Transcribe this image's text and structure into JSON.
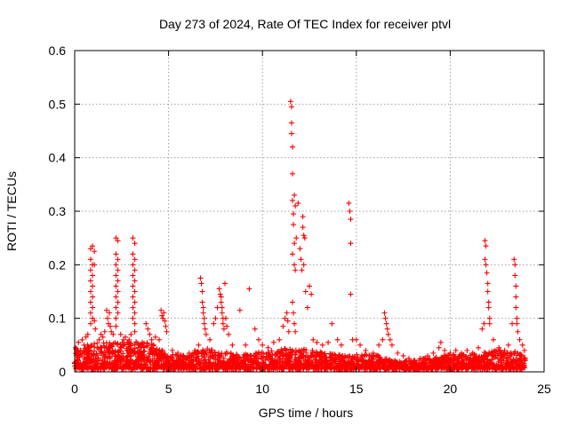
{
  "chart_data": {
    "type": "scatter",
    "title": "Day 273 of 2024, Rate Of TEC Index for receiver ptvl",
    "xlabel": "GPS time / hours",
    "ylabel": "ROTI / TECUs",
    "xlim": [
      0,
      25
    ],
    "ylim": [
      0,
      0.6
    ],
    "xticks": [
      0,
      5,
      10,
      15,
      20,
      25
    ],
    "yticks": [
      0,
      0.1,
      0.2,
      0.3,
      0.4,
      0.5,
      0.6
    ],
    "xtick_labels": [
      "0",
      "5",
      "10",
      "15",
      "20",
      "25"
    ],
    "ytick_labels": [
      "0",
      "0.1",
      "0.2",
      "0.3",
      "0.4",
      "0.5",
      "0.6"
    ],
    "grid": true,
    "marker": "+",
    "color": "#ff0000",
    "series": [
      {
        "name": "ROTI",
        "points": [
          [
            0.05,
            0.045
          ],
          [
            0.1,
            0.03
          ],
          [
            0.2,
            0.055
          ],
          [
            0.3,
            0.04
          ],
          [
            0.4,
            0.06
          ],
          [
            0.5,
            0.05
          ],
          [
            0.6,
            0.065
          ],
          [
            0.7,
            0.07
          ],
          [
            0.85,
            0.23
          ],
          [
            0.85,
            0.21
          ],
          [
            0.85,
            0.19
          ],
          [
            0.85,
            0.17
          ],
          [
            0.85,
            0.15
          ],
          [
            0.85,
            0.13
          ],
          [
            0.85,
            0.11
          ],
          [
            0.85,
            0.09
          ],
          [
            0.95,
            0.235
          ],
          [
            0.95,
            0.2
          ],
          [
            0.95,
            0.18
          ],
          [
            0.95,
            0.16
          ],
          [
            0.95,
            0.14
          ],
          [
            0.95,
            0.12
          ],
          [
            0.95,
            0.1
          ],
          [
            1.05,
            0.225
          ],
          [
            1.05,
            0.2
          ],
          [
            1.05,
            0.095
          ],
          [
            1.1,
            0.08
          ],
          [
            1.3,
            0.06
          ],
          [
            1.4,
            0.07
          ],
          [
            1.5,
            0.065
          ],
          [
            1.6,
            0.075
          ],
          [
            1.7,
            0.115
          ],
          [
            1.75,
            0.1
          ],
          [
            1.8,
            0.09
          ],
          [
            1.85,
            0.11
          ],
          [
            1.9,
            0.085
          ],
          [
            1.95,
            0.075
          ],
          [
            2.05,
            0.07
          ],
          [
            2.2,
            0.25
          ],
          [
            2.2,
            0.22
          ],
          [
            2.2,
            0.2
          ],
          [
            2.2,
            0.18
          ],
          [
            2.2,
            0.16
          ],
          [
            2.2,
            0.14
          ],
          [
            2.2,
            0.12
          ],
          [
            2.2,
            0.1
          ],
          [
            2.2,
            0.085
          ],
          [
            2.3,
            0.245
          ],
          [
            2.3,
            0.21
          ],
          [
            2.3,
            0.19
          ],
          [
            2.3,
            0.17
          ],
          [
            2.3,
            0.15
          ],
          [
            2.3,
            0.13
          ],
          [
            2.3,
            0.11
          ],
          [
            2.45,
            0.07
          ],
          [
            2.6,
            0.06
          ],
          [
            2.7,
            0.065
          ],
          [
            2.8,
            0.055
          ],
          [
            2.9,
            0.06
          ],
          [
            3.0,
            0.07
          ],
          [
            3.1,
            0.25
          ],
          [
            3.1,
            0.22
          ],
          [
            3.1,
            0.2
          ],
          [
            3.1,
            0.18
          ],
          [
            3.1,
            0.16
          ],
          [
            3.1,
            0.14
          ],
          [
            3.1,
            0.12
          ],
          [
            3.1,
            0.1
          ],
          [
            3.2,
            0.24
          ],
          [
            3.2,
            0.21
          ],
          [
            3.2,
            0.19
          ],
          [
            3.2,
            0.17
          ],
          [
            3.2,
            0.15
          ],
          [
            3.2,
            0.13
          ],
          [
            3.2,
            0.11
          ],
          [
            3.2,
            0.09
          ],
          [
            3.2,
            0.075
          ],
          [
            3.4,
            0.05
          ],
          [
            3.6,
            0.055
          ],
          [
            3.8,
            0.09
          ],
          [
            3.9,
            0.08
          ],
          [
            4.0,
            0.07
          ],
          [
            4.1,
            0.06
          ],
          [
            4.3,
            0.065
          ],
          [
            4.5,
            0.06
          ],
          [
            4.6,
            0.115
          ],
          [
            4.65,
            0.105
          ],
          [
            4.7,
            0.1
          ],
          [
            4.75,
            0.11
          ],
          [
            4.8,
            0.095
          ],
          [
            4.85,
            0.085
          ],
          [
            4.9,
            0.075
          ],
          [
            5.2,
            0.04
          ],
          [
            5.5,
            0.035
          ],
          [
            5.8,
            0.03
          ],
          [
            6.1,
            0.035
          ],
          [
            6.4,
            0.04
          ],
          [
            6.6,
            0.05
          ],
          [
            6.7,
            0.175
          ],
          [
            6.75,
            0.165
          ],
          [
            6.8,
            0.15
          ],
          [
            6.8,
            0.13
          ],
          [
            6.85,
            0.12
          ],
          [
            6.85,
            0.11
          ],
          [
            6.9,
            0.1
          ],
          [
            6.9,
            0.09
          ],
          [
            6.95,
            0.08
          ],
          [
            7.0,
            0.07
          ],
          [
            7.2,
            0.06
          ],
          [
            7.4,
            0.09
          ],
          [
            7.5,
            0.1
          ],
          [
            7.6,
            0.12
          ],
          [
            7.7,
            0.155
          ],
          [
            7.75,
            0.145
          ],
          [
            7.8,
            0.14
          ],
          [
            7.8,
            0.13
          ],
          [
            7.85,
            0.12
          ],
          [
            7.85,
            0.11
          ],
          [
            7.9,
            0.1
          ],
          [
            7.9,
            0.09
          ],
          [
            7.95,
            0.08
          ],
          [
            8.0,
            0.165
          ],
          [
            8.05,
            0.1
          ],
          [
            8.1,
            0.085
          ],
          [
            8.2,
            0.07
          ],
          [
            8.4,
            0.05
          ],
          [
            8.8,
            0.115
          ],
          [
            9.1,
            0.05
          ],
          [
            9.3,
            0.155
          ],
          [
            9.6,
            0.08
          ],
          [
            9.8,
            0.06
          ],
          [
            10.0,
            0.05
          ],
          [
            10.3,
            0.045
          ],
          [
            10.6,
            0.055
          ],
          [
            10.9,
            0.06
          ],
          [
            11.1,
            0.085
          ],
          [
            11.2,
            0.1
          ],
          [
            11.3,
            0.11
          ],
          [
            11.35,
            0.095
          ],
          [
            11.4,
            0.075
          ],
          [
            11.5,
            0.505
          ],
          [
            11.55,
            0.495
          ],
          [
            11.55,
            0.465
          ],
          [
            11.55,
            0.445
          ],
          [
            11.6,
            0.42
          ],
          [
            11.6,
            0.37
          ],
          [
            11.6,
            0.32
          ],
          [
            11.65,
            0.295
          ],
          [
            11.65,
            0.275
          ],
          [
            11.7,
            0.33
          ],
          [
            11.75,
            0.31
          ],
          [
            11.7,
            0.24
          ],
          [
            11.7,
            0.2
          ],
          [
            11.75,
            0.19
          ],
          [
            11.8,
            0.25
          ],
          [
            11.6,
            0.22
          ],
          [
            11.6,
            0.13
          ],
          [
            11.65,
            0.11
          ],
          [
            11.7,
            0.09
          ],
          [
            11.75,
            0.075
          ],
          [
            11.9,
            0.315
          ],
          [
            12.0,
            0.23
          ],
          [
            12.05,
            0.21
          ],
          [
            12.1,
            0.19
          ],
          [
            12.15,
            0.29
          ],
          [
            12.15,
            0.27
          ],
          [
            12.2,
            0.255
          ],
          [
            12.25,
            0.25
          ],
          [
            12.2,
            0.2
          ],
          [
            12.3,
            0.15
          ],
          [
            12.4,
            0.12
          ],
          [
            12.5,
            0.16
          ],
          [
            12.6,
            0.145
          ],
          [
            12.7,
            0.06
          ],
          [
            12.9,
            0.055
          ],
          [
            13.2,
            0.05
          ],
          [
            13.5,
            0.055
          ],
          [
            13.7,
            0.09
          ],
          [
            14.0,
            0.06
          ],
          [
            14.2,
            0.05
          ],
          [
            14.6,
            0.315
          ],
          [
            14.65,
            0.3
          ],
          [
            14.7,
            0.285
          ],
          [
            14.7,
            0.24
          ],
          [
            14.7,
            0.145
          ],
          [
            14.8,
            0.06
          ],
          [
            15.0,
            0.06
          ],
          [
            15.2,
            0.05
          ],
          [
            15.5,
            0.04
          ],
          [
            15.9,
            0.035
          ],
          [
            16.2,
            0.05
          ],
          [
            16.4,
            0.06
          ],
          [
            16.5,
            0.11
          ],
          [
            16.55,
            0.1
          ],
          [
            16.6,
            0.09
          ],
          [
            16.65,
            0.08
          ],
          [
            16.7,
            0.07
          ],
          [
            16.8,
            0.06
          ],
          [
            16.9,
            0.05
          ],
          [
            17.2,
            0.035
          ],
          [
            17.5,
            0.03
          ],
          [
            17.8,
            0.025
          ],
          [
            18.1,
            0.02
          ],
          [
            18.4,
            0.025
          ],
          [
            18.8,
            0.03
          ],
          [
            19.1,
            0.035
          ],
          [
            19.4,
            0.045
          ],
          [
            19.5,
            0.055
          ],
          [
            19.7,
            0.04
          ],
          [
            20.0,
            0.035
          ],
          [
            20.3,
            0.04
          ],
          [
            20.6,
            0.035
          ],
          [
            20.9,
            0.04
          ],
          [
            21.2,
            0.035
          ],
          [
            21.5,
            0.045
          ],
          [
            21.7,
            0.08
          ],
          [
            21.8,
            0.09
          ],
          [
            21.85,
            0.245
          ],
          [
            21.9,
            0.235
          ],
          [
            21.85,
            0.21
          ],
          [
            21.9,
            0.2
          ],
          [
            21.95,
            0.185
          ],
          [
            22.0,
            0.165
          ],
          [
            22.0,
            0.15
          ],
          [
            22.05,
            0.13
          ],
          [
            22.05,
            0.12
          ],
          [
            22.1,
            0.1
          ],
          [
            22.1,
            0.09
          ],
          [
            22.3,
            0.06
          ],
          [
            22.6,
            0.045
          ],
          [
            22.9,
            0.04
          ],
          [
            23.1,
            0.05
          ],
          [
            23.3,
            0.09
          ],
          [
            23.4,
            0.21
          ],
          [
            23.45,
            0.2
          ],
          [
            23.45,
            0.18
          ],
          [
            23.5,
            0.16
          ],
          [
            23.5,
            0.14
          ],
          [
            23.5,
            0.12
          ],
          [
            23.55,
            0.1
          ],
          [
            23.55,
            0.09
          ],
          [
            23.6,
            0.075
          ],
          [
            23.7,
            0.06
          ],
          [
            23.85,
            0.05
          ],
          [
            23.95,
            0.04
          ]
        ],
        "background_band": {
          "description": "dense near-zero scatter",
          "x_start": 0,
          "x_end": 24,
          "y_floor": 0.005,
          "y_levels": [
            [
              0,
              0.04
            ],
            [
              1,
              0.05
            ],
            [
              2,
              0.05
            ],
            [
              3,
              0.055
            ],
            [
              4,
              0.05
            ],
            [
              5,
              0.03
            ],
            [
              6,
              0.03
            ],
            [
              7,
              0.04
            ],
            [
              8,
              0.035
            ],
            [
              9,
              0.03
            ],
            [
              10,
              0.035
            ],
            [
              11,
              0.04
            ],
            [
              12,
              0.04
            ],
            [
              13,
              0.035
            ],
            [
              14,
              0.03
            ],
            [
              15,
              0.03
            ],
            [
              16,
              0.03
            ],
            [
              17,
              0.02
            ],
            [
              18,
              0.02
            ],
            [
              19,
              0.025
            ],
            [
              20,
              0.03
            ],
            [
              21,
              0.03
            ],
            [
              22,
              0.035
            ],
            [
              23,
              0.04
            ],
            [
              24,
              0.03
            ]
          ]
        }
      }
    ]
  }
}
